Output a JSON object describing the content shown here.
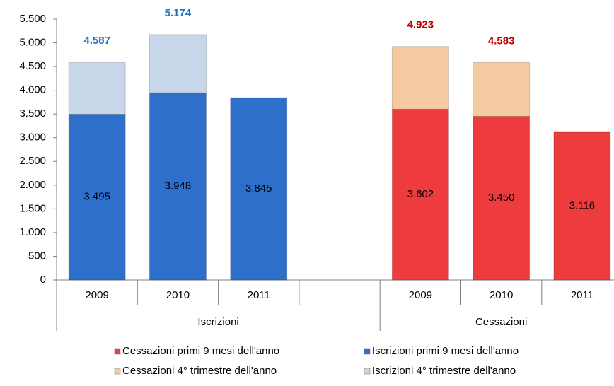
{
  "chart_data": {
    "type": "stacked_bar",
    "categories": [
      "2009",
      "2010",
      "2011",
      null,
      "2009",
      "2010",
      "2011"
    ],
    "groups": [
      "Iscrizioni",
      "Cessazioni"
    ],
    "series": [
      {
        "name": "Cessazioni primi 9 mesi dell'anno",
        "color": "#ee3b3d",
        "values": [
          null,
          null,
          null,
          null,
          3602,
          3450,
          3116
        ],
        "value_labels": [
          null,
          null,
          null,
          null,
          "3.602",
          "3.450",
          "3.116"
        ]
      },
      {
        "name": "Iscrizioni primi 9 mesi dell'anno",
        "color": "#2f6fcc",
        "values": [
          3495,
          3948,
          3845,
          null,
          null,
          null,
          null
        ],
        "value_labels": [
          "3.495",
          "3.948",
          "3.845",
          null,
          null,
          null,
          null
        ]
      },
      {
        "name": "Cessazioni 4° trimestre dell'anno",
        "color": "#f6caa0",
        "values": [
          null,
          null,
          null,
          null,
          1321,
          1133,
          null
        ]
      },
      {
        "name": "Iscrizioni 4° trimestre dell'anno",
        "color": "#c8d6ea",
        "values": [
          1092,
          1226,
          null,
          null,
          null,
          null,
          null
        ]
      }
    ],
    "totals": {
      "values": [
        4587,
        5174,
        null,
        null,
        4923,
        4583,
        null
      ],
      "value_labels": [
        "4.587",
        "5.174",
        null,
        null,
        "4.923",
        "4.583",
        null
      ],
      "colors": [
        "#1a72c0",
        "#1a72c0",
        null,
        null,
        "#c00000",
        "#c00000",
        null
      ]
    },
    "ylim": [
      0,
      5500
    ],
    "yticks": [
      0,
      500,
      {
        "value": 1000,
        "label": "1.000"
      },
      {
        "value": 1500,
        "label": "1.500"
      },
      {
        "value": 2000,
        "label": "2.000"
      },
      {
        "value": 2500,
        "label": "2.500"
      },
      {
        "value": 3000,
        "label": "3.000"
      },
      {
        "value": 3500,
        "label": "3.500"
      },
      {
        "value": 4000,
        "label": "4.000"
      },
      {
        "value": 4500,
        "label": "4.500"
      },
      {
        "value": 5000,
        "label": "5.000"
      },
      {
        "value": 5500,
        "label": "5.500"
      }
    ],
    "grid": false
  }
}
